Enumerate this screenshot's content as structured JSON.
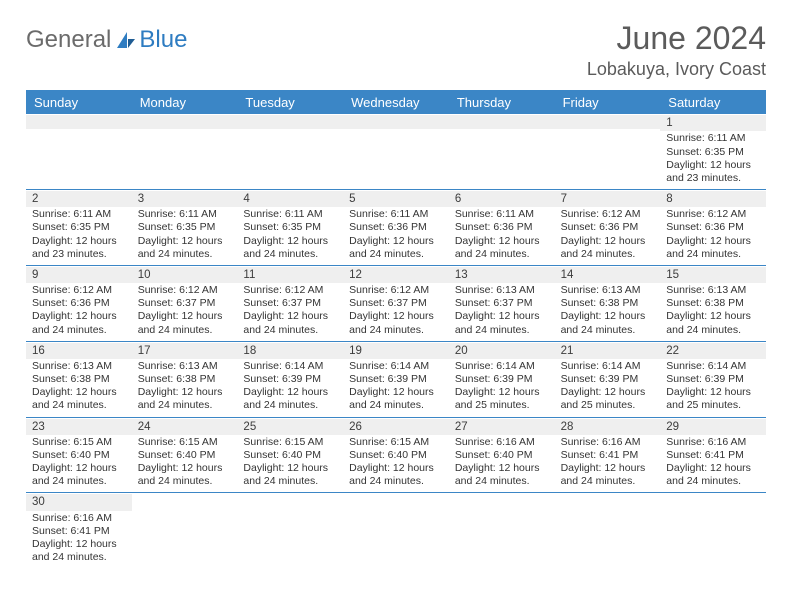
{
  "logo": {
    "text_general": "General",
    "text_blue": "Blue",
    "accent_color": "#2e7cc1",
    "text_color": "#6b6b6b"
  },
  "title": "June 2024",
  "location": "Lobakuya, Ivory Coast",
  "header_bg": "#3b86c6",
  "header_fg": "#ffffff",
  "daynum_bg": "#efefef",
  "border_color": "#3b86c6",
  "day_names": [
    "Sunday",
    "Monday",
    "Tuesday",
    "Wednesday",
    "Thursday",
    "Friday",
    "Saturday"
  ],
  "weeks": [
    [
      null,
      null,
      null,
      null,
      null,
      null,
      {
        "n": "1",
        "sr": "Sunrise: 6:11 AM",
        "ss": "Sunset: 6:35 PM",
        "dl": "Daylight: 12 hours and 23 minutes."
      }
    ],
    [
      {
        "n": "2",
        "sr": "Sunrise: 6:11 AM",
        "ss": "Sunset: 6:35 PM",
        "dl": "Daylight: 12 hours and 23 minutes."
      },
      {
        "n": "3",
        "sr": "Sunrise: 6:11 AM",
        "ss": "Sunset: 6:35 PM",
        "dl": "Daylight: 12 hours and 24 minutes."
      },
      {
        "n": "4",
        "sr": "Sunrise: 6:11 AM",
        "ss": "Sunset: 6:35 PM",
        "dl": "Daylight: 12 hours and 24 minutes."
      },
      {
        "n": "5",
        "sr": "Sunrise: 6:11 AM",
        "ss": "Sunset: 6:36 PM",
        "dl": "Daylight: 12 hours and 24 minutes."
      },
      {
        "n": "6",
        "sr": "Sunrise: 6:11 AM",
        "ss": "Sunset: 6:36 PM",
        "dl": "Daylight: 12 hours and 24 minutes."
      },
      {
        "n": "7",
        "sr": "Sunrise: 6:12 AM",
        "ss": "Sunset: 6:36 PM",
        "dl": "Daylight: 12 hours and 24 minutes."
      },
      {
        "n": "8",
        "sr": "Sunrise: 6:12 AM",
        "ss": "Sunset: 6:36 PM",
        "dl": "Daylight: 12 hours and 24 minutes."
      }
    ],
    [
      {
        "n": "9",
        "sr": "Sunrise: 6:12 AM",
        "ss": "Sunset: 6:36 PM",
        "dl": "Daylight: 12 hours and 24 minutes."
      },
      {
        "n": "10",
        "sr": "Sunrise: 6:12 AM",
        "ss": "Sunset: 6:37 PM",
        "dl": "Daylight: 12 hours and 24 minutes."
      },
      {
        "n": "11",
        "sr": "Sunrise: 6:12 AM",
        "ss": "Sunset: 6:37 PM",
        "dl": "Daylight: 12 hours and 24 minutes."
      },
      {
        "n": "12",
        "sr": "Sunrise: 6:12 AM",
        "ss": "Sunset: 6:37 PM",
        "dl": "Daylight: 12 hours and 24 minutes."
      },
      {
        "n": "13",
        "sr": "Sunrise: 6:13 AM",
        "ss": "Sunset: 6:37 PM",
        "dl": "Daylight: 12 hours and 24 minutes."
      },
      {
        "n": "14",
        "sr": "Sunrise: 6:13 AM",
        "ss": "Sunset: 6:38 PM",
        "dl": "Daylight: 12 hours and 24 minutes."
      },
      {
        "n": "15",
        "sr": "Sunrise: 6:13 AM",
        "ss": "Sunset: 6:38 PM",
        "dl": "Daylight: 12 hours and 24 minutes."
      }
    ],
    [
      {
        "n": "16",
        "sr": "Sunrise: 6:13 AM",
        "ss": "Sunset: 6:38 PM",
        "dl": "Daylight: 12 hours and 24 minutes."
      },
      {
        "n": "17",
        "sr": "Sunrise: 6:13 AM",
        "ss": "Sunset: 6:38 PM",
        "dl": "Daylight: 12 hours and 24 minutes."
      },
      {
        "n": "18",
        "sr": "Sunrise: 6:14 AM",
        "ss": "Sunset: 6:39 PM",
        "dl": "Daylight: 12 hours and 24 minutes."
      },
      {
        "n": "19",
        "sr": "Sunrise: 6:14 AM",
        "ss": "Sunset: 6:39 PM",
        "dl": "Daylight: 12 hours and 24 minutes."
      },
      {
        "n": "20",
        "sr": "Sunrise: 6:14 AM",
        "ss": "Sunset: 6:39 PM",
        "dl": "Daylight: 12 hours and 25 minutes."
      },
      {
        "n": "21",
        "sr": "Sunrise: 6:14 AM",
        "ss": "Sunset: 6:39 PM",
        "dl": "Daylight: 12 hours and 25 minutes."
      },
      {
        "n": "22",
        "sr": "Sunrise: 6:14 AM",
        "ss": "Sunset: 6:39 PM",
        "dl": "Daylight: 12 hours and 25 minutes."
      }
    ],
    [
      {
        "n": "23",
        "sr": "Sunrise: 6:15 AM",
        "ss": "Sunset: 6:40 PM",
        "dl": "Daylight: 12 hours and 24 minutes."
      },
      {
        "n": "24",
        "sr": "Sunrise: 6:15 AM",
        "ss": "Sunset: 6:40 PM",
        "dl": "Daylight: 12 hours and 24 minutes."
      },
      {
        "n": "25",
        "sr": "Sunrise: 6:15 AM",
        "ss": "Sunset: 6:40 PM",
        "dl": "Daylight: 12 hours and 24 minutes."
      },
      {
        "n": "26",
        "sr": "Sunrise: 6:15 AM",
        "ss": "Sunset: 6:40 PM",
        "dl": "Daylight: 12 hours and 24 minutes."
      },
      {
        "n": "27",
        "sr": "Sunrise: 6:16 AM",
        "ss": "Sunset: 6:40 PM",
        "dl": "Daylight: 12 hours and 24 minutes."
      },
      {
        "n": "28",
        "sr": "Sunrise: 6:16 AM",
        "ss": "Sunset: 6:41 PM",
        "dl": "Daylight: 12 hours and 24 minutes."
      },
      {
        "n": "29",
        "sr": "Sunrise: 6:16 AM",
        "ss": "Sunset: 6:41 PM",
        "dl": "Daylight: 12 hours and 24 minutes."
      }
    ],
    [
      {
        "n": "30",
        "sr": "Sunrise: 6:16 AM",
        "ss": "Sunset: 6:41 PM",
        "dl": "Daylight: 12 hours and 24 minutes."
      },
      null,
      null,
      null,
      null,
      null,
      null
    ]
  ]
}
